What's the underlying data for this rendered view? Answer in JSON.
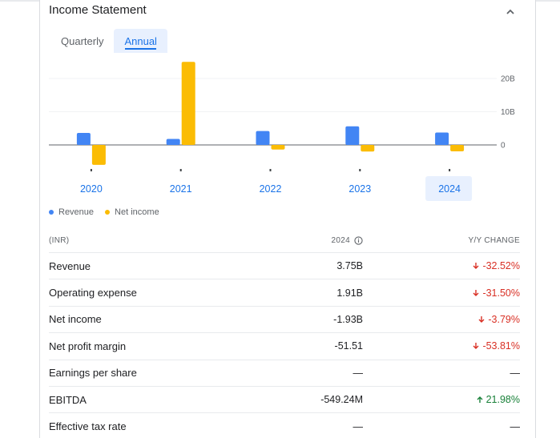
{
  "card": {
    "title": "Income Statement",
    "collapse_icon": "chevron-up-icon"
  },
  "tabs": [
    {
      "label": "Quarterly",
      "active": false
    },
    {
      "label": "Annual",
      "active": true
    }
  ],
  "chart_data": {
    "type": "bar",
    "categories": [
      "2020",
      "2021",
      "2022",
      "2023",
      "2024"
    ],
    "selected_category": "2024",
    "series": [
      {
        "name": "Revenue",
        "color": "#4285f4",
        "values": [
          3.6,
          1.8,
          4.2,
          5.6,
          3.75
        ]
      },
      {
        "name": "Net income",
        "color": "#fbbc04",
        "values": [
          -6.0,
          25.0,
          -1.4,
          -2.0,
          -1.93
        ]
      }
    ],
    "ylim": [
      -6.2,
      25.5
    ],
    "ytick_values": [
      0,
      10,
      20
    ],
    "ytick_labels": [
      "0",
      "10B",
      "20B"
    ],
    "legend_position": "bottom-left"
  },
  "table": {
    "headers": {
      "label": "(INR)",
      "year": "2024",
      "change": "Y/Y CHANGE"
    },
    "rows": [
      {
        "label": "Revenue",
        "value": "3.75B",
        "change": "-32.52%",
        "direction": "down"
      },
      {
        "label": "Operating expense",
        "value": "1.91B",
        "change": "-31.50%",
        "direction": "down"
      },
      {
        "label": "Net income",
        "value": "-1.93B",
        "change": "-3.79%",
        "direction": "down"
      },
      {
        "label": "Net profit margin",
        "value": "-51.51",
        "change": "-53.81%",
        "direction": "down"
      },
      {
        "label": "Earnings per share",
        "value": "—",
        "change": "—",
        "direction": "none"
      },
      {
        "label": "EBITDA",
        "value": "-549.24M",
        "change": "21.98%",
        "direction": "up"
      },
      {
        "label": "Effective tax rate",
        "value": "—",
        "change": "—",
        "direction": "none"
      }
    ]
  },
  "colors": {
    "down": "#d93025",
    "up": "#188038",
    "accent": "#1a73e8"
  }
}
